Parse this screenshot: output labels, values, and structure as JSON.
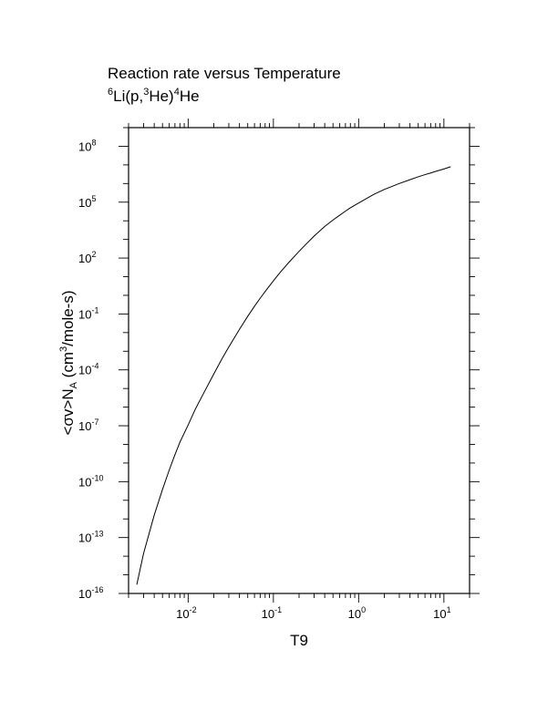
{
  "chart_data": {
    "type": "line",
    "title": "Reaction rate versus Temperature",
    "subtitle": {
      "sup1": "6",
      "part1": "Li(p,",
      "sup2": "3",
      "part2": "He)",
      "sup3": "4",
      "part3": "He"
    },
    "xlabel": "T9",
    "ylabel": {
      "part1": "<σv>N",
      "sub": "A",
      "part2": " (cm",
      "sup": "3",
      "part3": "/mole-s)"
    },
    "x_scale": "log",
    "y_scale": "log",
    "xlim": [
      0.002,
      20
    ],
    "ylim": [
      1e-16,
      1000000000.0
    ],
    "x_ticks": [
      {
        "value": 0.01,
        "base": "10",
        "exp": "-2"
      },
      {
        "value": 0.1,
        "base": "10",
        "exp": "-1"
      },
      {
        "value": 1,
        "base": "10",
        "exp": "0"
      },
      {
        "value": 10,
        "base": "10",
        "exp": "1"
      }
    ],
    "y_ticks": [
      {
        "value": 1e-16,
        "base": "10",
        "exp": "-16"
      },
      {
        "value": 1e-13,
        "base": "10",
        "exp": "-13"
      },
      {
        "value": 1e-10,
        "base": "10",
        "exp": "-10"
      },
      {
        "value": 1e-07,
        "base": "10",
        "exp": "-7"
      },
      {
        "value": 0.0001,
        "base": "10",
        "exp": "-4"
      },
      {
        "value": 0.1,
        "base": "10",
        "exp": "-1"
      },
      {
        "value": 100,
        "base": "10",
        "exp": "2"
      },
      {
        "value": 100000,
        "base": "10",
        "exp": "5"
      },
      {
        "value": 100000000,
        "base": "10",
        "exp": "8"
      }
    ],
    "grid": false,
    "series": [
      {
        "color": "#000000",
        "x": [
          0.0025,
          0.003,
          0.004,
          0.005,
          0.006,
          0.007,
          0.008,
          0.01,
          0.012,
          0.015,
          0.02,
          0.025,
          0.03,
          0.04,
          0.05,
          0.06,
          0.07,
          0.08,
          0.1,
          0.12,
          0.15,
          0.2,
          0.25,
          0.3,
          0.4,
          0.5,
          0.6,
          0.7,
          0.8,
          1.0,
          1.5,
          2,
          3,
          4,
          5,
          6,
          7,
          8,
          10,
          12
        ],
        "y": [
          3e-16,
          1.4e-14,
          1.6e-12,
          3.8e-11,
          4.2e-10,
          2.8e-09,
          1.3e-08,
          1.1e-07,
          7e-07,
          5e-06,
          6e-05,
          0.0004,
          0.0017,
          0.015,
          0.075,
          0.26,
          0.7,
          1.6,
          6,
          17,
          55,
          230,
          650,
          1500,
          5000,
          11000,
          20000,
          33000,
          50000,
          90000,
          260000,
          480000,
          1000000,
          1600000,
          2300000,
          3000000,
          3700000,
          4500000,
          6000000,
          8000000
        ]
      }
    ]
  }
}
